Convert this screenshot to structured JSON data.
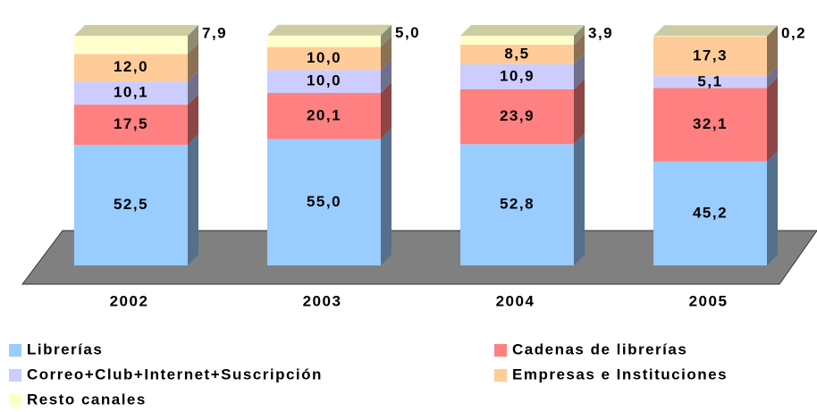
{
  "chart_data": {
    "type": "bar3d_stacked",
    "categories": [
      "2002",
      "2003",
      "2004",
      "2005"
    ],
    "series": [
      {
        "name": "Librerías",
        "color": "#99ccff",
        "values": [
          52.5,
          55.0,
          52.8,
          45.2
        ],
        "value_labels": [
          "52,5",
          "55,0",
          "52,8",
          "45,2"
        ]
      },
      {
        "name": "Cadenas de librerías",
        "color": "#ff8080",
        "values": [
          17.5,
          20.1,
          23.9,
          32.1
        ],
        "value_labels": [
          "17,5",
          "20,1",
          "23,9",
          "32,1"
        ]
      },
      {
        "name": "Correo+Club+Internet+Suscripción",
        "color": "#ccccff",
        "values": [
          10.1,
          10.0,
          10.9,
          5.1
        ],
        "value_labels": [
          "10,1",
          "10,0",
          "10,9",
          "5,1"
        ]
      },
      {
        "name": "Empresas e Instituciones",
        "color": "#ffcc99",
        "values": [
          12.0,
          10.0,
          8.5,
          17.3
        ],
        "value_labels": [
          "12,0",
          "10,0",
          "8,5",
          "17,3"
        ]
      },
      {
        "name": "Resto canales",
        "color": "#ffffcc",
        "values": [
          7.9,
          5.0,
          3.9,
          0.2
        ],
        "value_labels": [
          "7,9",
          "5,0",
          "3,9",
          "0,2"
        ]
      }
    ],
    "legend": "bottom"
  }
}
